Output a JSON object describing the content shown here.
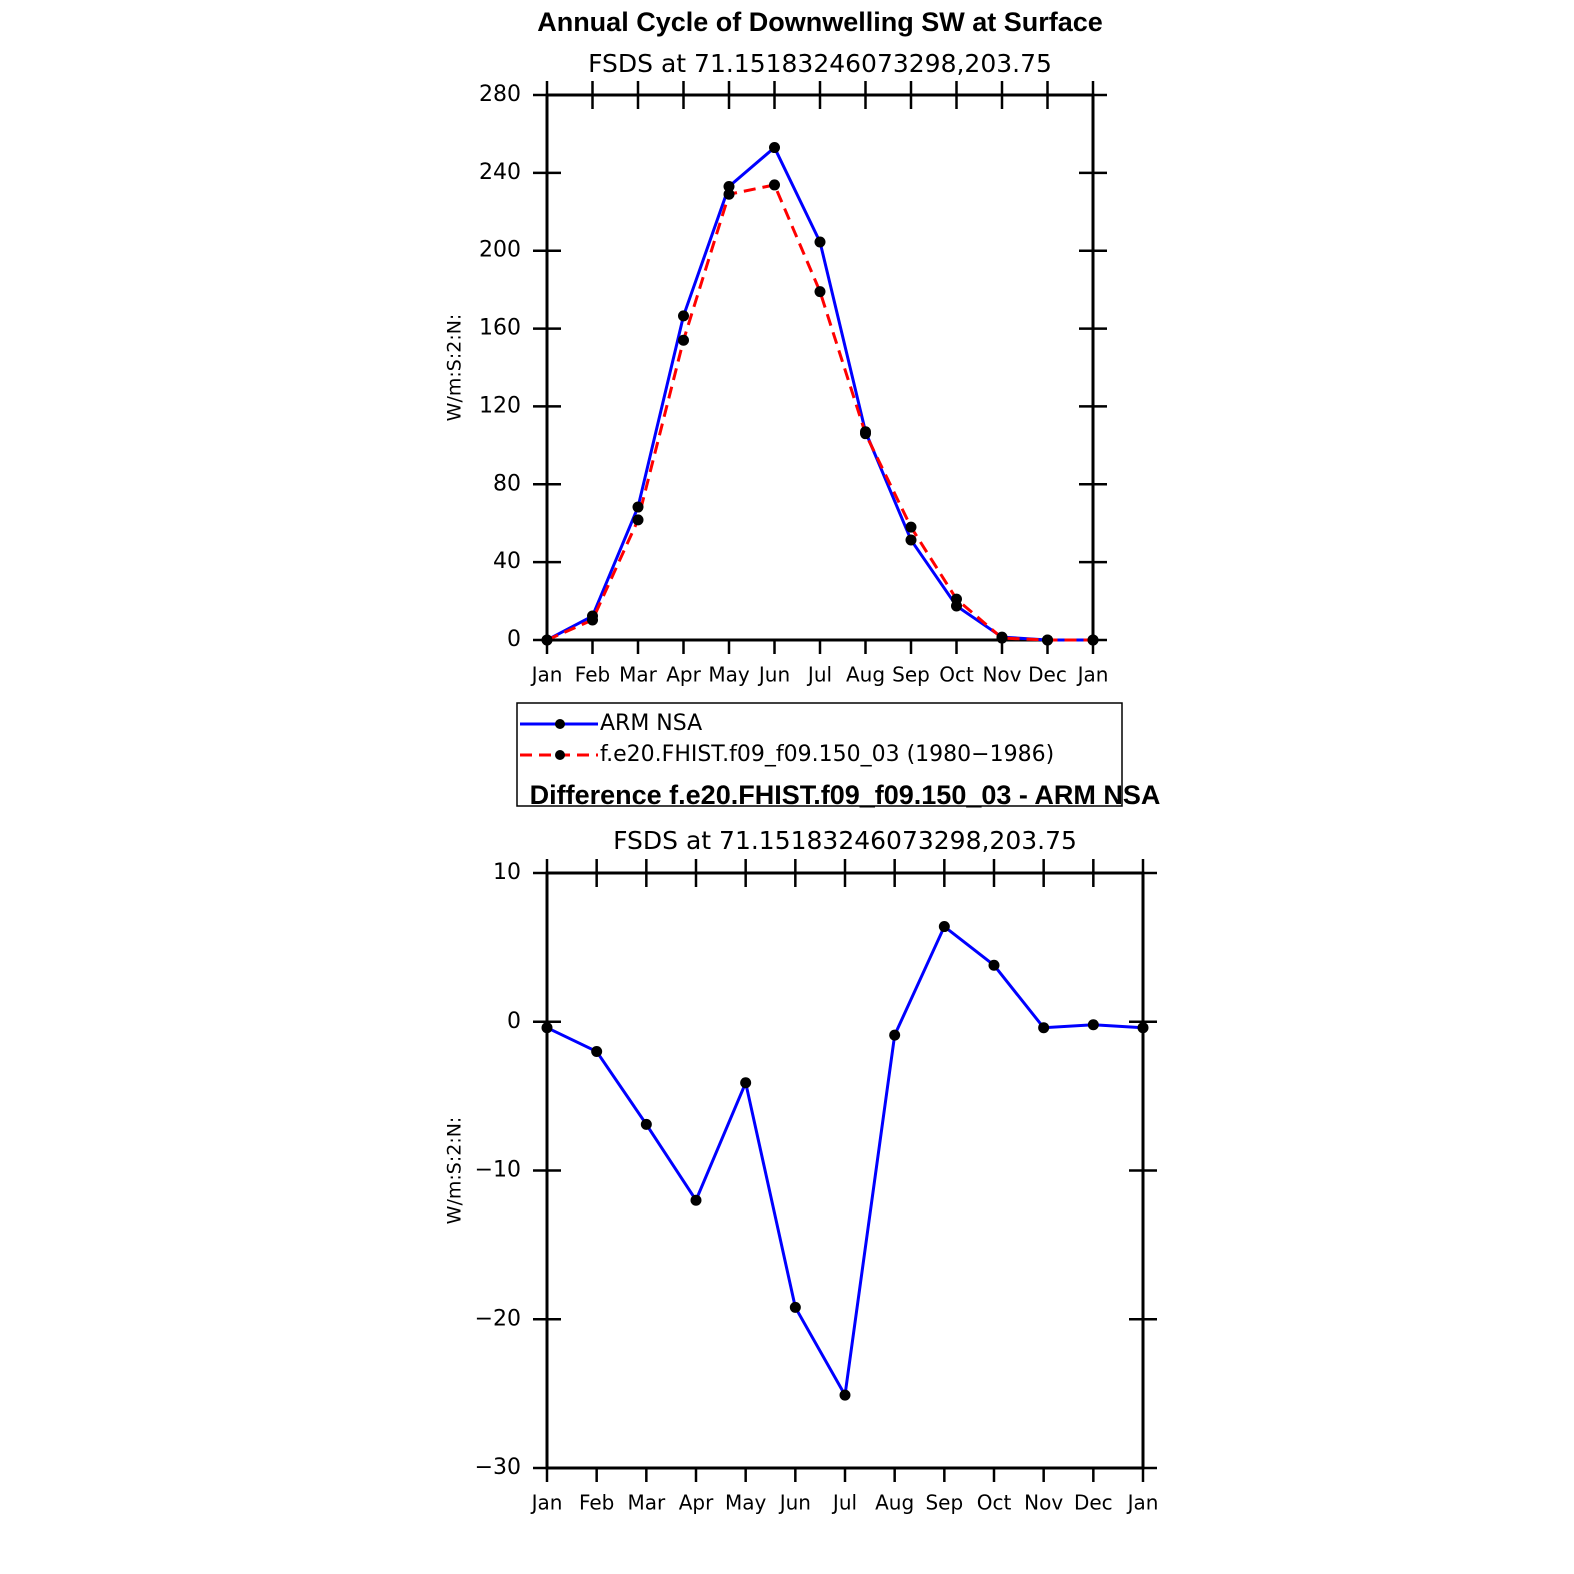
{
  "chart_data": [
    {
      "type": "line",
      "title": "Annual Cycle of Downwelling SW at Surface",
      "subtitle": "FSDS at 71.15183246073298,203.75",
      "y_label": "W/m:S:2:N:",
      "categories": [
        "Jan",
        "Feb",
        "Mar",
        "Apr",
        "May",
        "Jun",
        "Jul",
        "Aug",
        "Sep",
        "Oct",
        "Nov",
        "Dec",
        "Jan"
      ],
      "series": [
        {
          "name": "ARM NSA",
          "color": "#0000ff",
          "line_style": "solid",
          "values": [
            0,
            12.3,
            68.3,
            166.5,
            233,
            253,
            204.5,
            107,
            51.4,
            17.5,
            1.5,
            0,
            0
          ]
        },
        {
          "name": "f.e20.FHIST.f09_f09.150_03 (1980−1986)",
          "color": "#ff0000",
          "line_style": "dashed",
          "values": [
            0,
            10.3,
            61.7,
            154,
            229,
            233.8,
            179,
            106,
            58,
            21,
            1,
            0,
            0
          ]
        }
      ],
      "ylim": [
        0,
        280
      ],
      "yticks": [
        0,
        40,
        80,
        120,
        160,
        200,
        240,
        280
      ],
      "legend": "bottom"
    },
    {
      "type": "line",
      "title": "Difference f.e20.FHIST.f09_f09.150_03 - ARM NSA",
      "subtitle": "FSDS at 71.15183246073298,203.75",
      "y_label": "W/m:S:2:N:",
      "categories": [
        "Jan",
        "Feb",
        "Mar",
        "Apr",
        "May",
        "Jun",
        "Jul",
        "Aug",
        "Sep",
        "Oct",
        "Nov",
        "Dec",
        "Jan"
      ],
      "series": [
        {
          "color": "#0000ff",
          "line_style": "solid",
          "values": [
            -0.4,
            -2.0,
            -6.9,
            -12.0,
            -4.1,
            -19.2,
            -25.1,
            -0.9,
            6.4,
            3.8,
            -0.4,
            -0.2,
            -0.4
          ]
        }
      ],
      "ylim": [
        -30,
        10
      ],
      "yticks": [
        {
          "value": -30,
          "label": "−30"
        },
        {
          "value": -20,
          "label": "−20"
        },
        {
          "value": -10,
          "label": "−10"
        },
        0,
        10
      ]
    }
  ]
}
